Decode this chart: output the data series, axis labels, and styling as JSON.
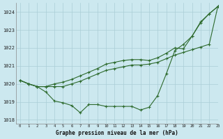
{
  "title": "Graphe pression niveau de la mer (hPa)",
  "background_color": "#cce8ef",
  "grid_color": "#aacdd6",
  "line_color": "#2d6a2d",
  "xlim": [
    -0.5,
    23
  ],
  "ylim": [
    1017.8,
    1024.5
  ],
  "yticks": [
    1018,
    1019,
    1020,
    1021,
    1022,
    1023,
    1024
  ],
  "xtick_labels": [
    "0",
    "1",
    "2",
    "3",
    "4",
    "5",
    "6",
    "7",
    "8",
    "9",
    "10",
    "11",
    "12",
    "13",
    "14",
    "15",
    "16",
    "17",
    "18",
    "19",
    "20",
    "21",
    "22",
    "23"
  ],
  "line1": [
    1020.2,
    1020.0,
    1019.85,
    1019.55,
    1019.05,
    1018.95,
    1018.8,
    1018.4,
    1018.85,
    1018.85,
    1018.75,
    1018.75,
    1018.75,
    1018.75,
    1018.55,
    1018.7,
    1019.35,
    1020.55,
    1021.85,
    1022.2,
    1022.65,
    1023.45,
    1023.9,
    1024.3
  ],
  "line2": [
    1020.2,
    1020.0,
    1019.85,
    1019.85,
    1019.85,
    1019.85,
    1020.0,
    1020.15,
    1020.35,
    1020.55,
    1020.75,
    1020.85,
    1020.95,
    1021.05,
    1021.05,
    1021.1,
    1021.2,
    1021.4,
    1021.6,
    1021.75,
    1021.9,
    1022.05,
    1022.2,
    1024.3
  ],
  "line3": [
    1020.2,
    1020.0,
    1019.85,
    1019.85,
    1020.0,
    1020.1,
    1020.25,
    1020.45,
    1020.65,
    1020.85,
    1021.1,
    1021.2,
    1021.3,
    1021.35,
    1021.35,
    1021.3,
    1021.45,
    1021.7,
    1022.0,
    1021.95,
    1022.65,
    1023.4,
    1023.9,
    1024.3
  ]
}
